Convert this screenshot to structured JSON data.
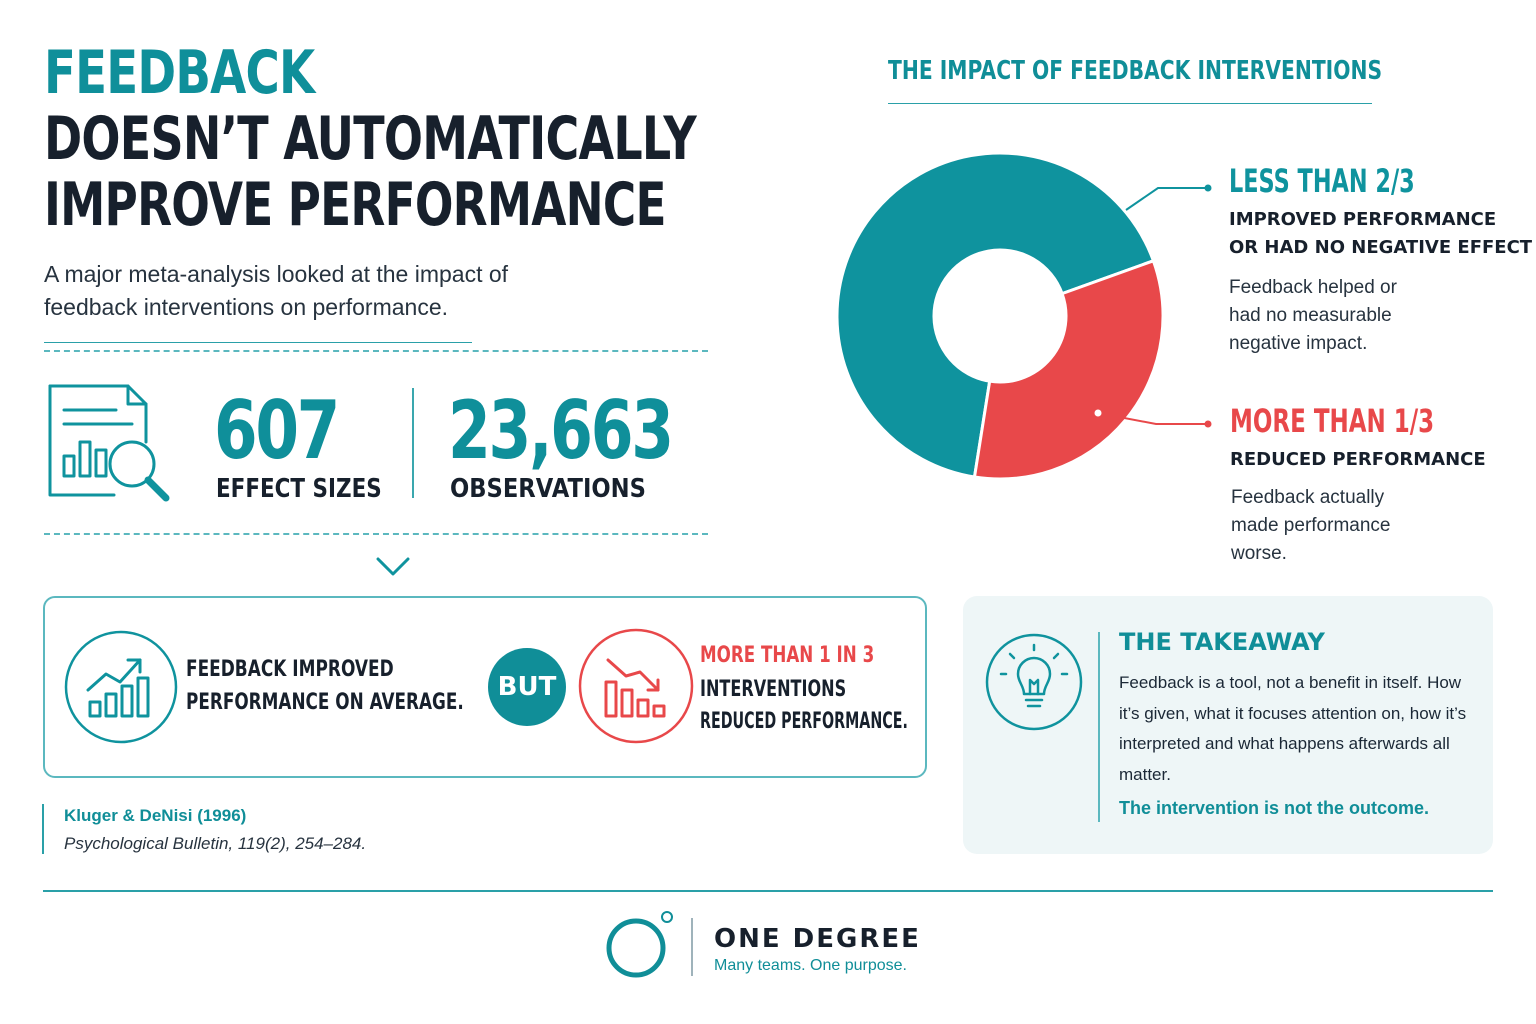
{
  "headline": {
    "line1": "FEEDBACK",
    "line2": "DOESN’T AUTOMATICALLY",
    "line3": "IMPROVE PERFORMANCE"
  },
  "intro": "A major meta-analysis looked at the impact of feedback interventions on performance.",
  "stats": [
    {
      "number": "607",
      "label": "EFFECT SIZES"
    },
    {
      "number": "23,663",
      "label": "OBSERVATIONS"
    }
  ],
  "comparison": {
    "left_line1": "FEEDBACK IMPROVED",
    "left_line2": "PERFORMANCE ON AVERAGE.",
    "connector": "BUT",
    "right_line1": "MORE THAN 1 IN 3",
    "right_line2": "INTERVENTIONS",
    "right_line3": "REDUCED PERFORMANCE."
  },
  "citation": {
    "authors": "Kluger & DeNisi (1996)",
    "journal": "Psychological Bulletin, 119(2), 254–284."
  },
  "chart_data": {
    "type": "pie",
    "title": "THE IMPACT OF FEEDBACK INTERVENTIONS",
    "slices": [
      {
        "label": "LESS THAN 2/3",
        "subtitle_line1": "IMPROVED PERFORMANCE",
        "subtitle_line2": "OR HAD NO NEGATIVE EFFECT",
        "description": "Feedback helped or had no measurable negative impact.",
        "value": 0.67,
        "color": "#0f939e"
      },
      {
        "label": "MORE THAN 1/3",
        "subtitle_line1": "REDUCED PERFORMANCE",
        "description": "Feedback actually made performance worse.",
        "value": 0.33,
        "color": "#e8484a"
      }
    ]
  },
  "takeaway": {
    "title": "THE TAKEAWAY",
    "body": "Feedback is a tool, not a benefit in itself. How it’s given, what it focuses attention on, how it’s interpreted and what happens afterwards all matter.",
    "punchline": "The intervention is not the outcome."
  },
  "footer": {
    "brand": "ONE DEGREE",
    "tagline": "Many teams. One purpose."
  },
  "colors": {
    "teal": "#0f939e",
    "red": "#e8484a",
    "dark": "#17202c"
  },
  "icons": [
    "document-chart-magnifier-icon",
    "rising-chart-icon",
    "falling-chart-icon",
    "lightbulb-icon",
    "one-degree-logo-icon"
  ]
}
